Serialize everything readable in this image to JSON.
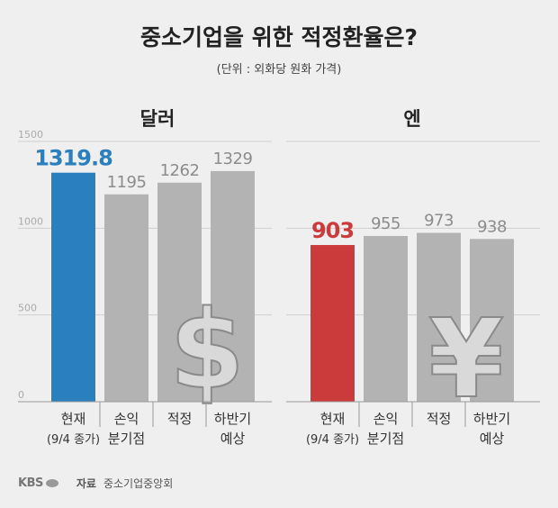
{
  "header": {
    "title": "중소기업을 위한 적정환율은?",
    "subtitle": "(단위 : 외화당 원화 가격)"
  },
  "chart_data": [
    {
      "type": "bar",
      "title": "달러",
      "categories": [
        "현재\n(9/4 종가)",
        "손익\n분기점",
        "적정",
        "하반기\n예상"
      ],
      "values": [
        1319.8,
        1195,
        1262,
        1329
      ],
      "value_labels": [
        "1319.8",
        "1195",
        "1262",
        "1329"
      ],
      "ylim": [
        0,
        1500
      ],
      "yticks": [
        "0",
        "500",
        "1000",
        "1500"
      ],
      "ytick_values": [
        0,
        500,
        1000,
        1500
      ],
      "grid": true,
      "highlight_index": 0,
      "colors": {
        "highlight": "#2a7fbe",
        "bar": "#b3b3b3",
        "highlight_label": "#2a7fbe",
        "label": "#8c8c8c"
      },
      "icon": "dollar-icon"
    },
    {
      "type": "bar",
      "title": "엔",
      "categories": [
        "현재\n(9/4 종가)",
        "손익\n분기점",
        "적정",
        "하반기\n예상"
      ],
      "values": [
        903,
        955,
        973,
        938
      ],
      "value_labels": [
        "903",
        "955",
        "973",
        "938"
      ],
      "ylim": [
        0,
        1500
      ],
      "grid": true,
      "highlight_index": 0,
      "colors": {
        "highlight": "#cc3b3b",
        "bar": "#b3b3b3",
        "highlight_label": "#cc3b3b",
        "label": "#8c8c8c"
      },
      "icon": "yen-icon"
    }
  ],
  "footer": {
    "logo": "KBS",
    "source_label": "자료",
    "source": "중소기업중앙회"
  }
}
